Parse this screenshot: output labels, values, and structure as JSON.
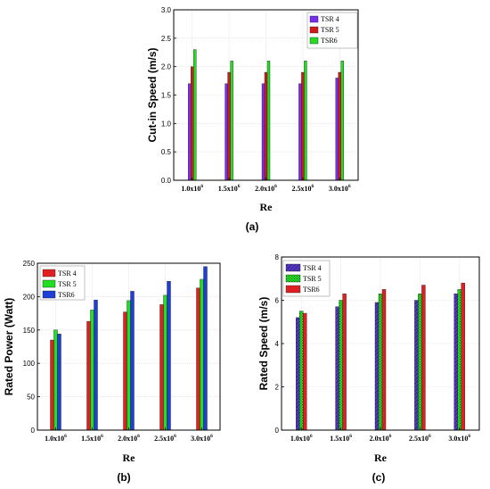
{
  "chart_data": [
    {
      "type": "bar",
      "panel_label": "(a)",
      "xlabel": "Re",
      "ylabel": "Cut-in Speed (m/s)",
      "categories": [
        "1.0x10^6",
        "1.5x10^6",
        "2.0x10^6",
        "2.5x10^6",
        "3.0x10^6"
      ],
      "ylim": [
        0,
        3.0
      ],
      "yticks": [
        "0.0",
        "0.5",
        "1.0",
        "1.5",
        "2.0",
        "2.5",
        "3.0"
      ],
      "legend_position": "top-right",
      "grid": true,
      "series": [
        {
          "name": "TSR 4",
          "color": "#7a2cf0",
          "pattern": false,
          "values": [
            1.7,
            1.7,
            1.7,
            1.7,
            1.8
          ]
        },
        {
          "name": "TSR 5",
          "color": "#d11a1a",
          "pattern": false,
          "values": [
            2.0,
            1.9,
            1.9,
            1.9,
            1.9
          ]
        },
        {
          "name": "TSR6",
          "color": "#22dd22",
          "pattern": false,
          "values": [
            2.3,
            2.1,
            2.1,
            2.1,
            2.1
          ]
        }
      ]
    },
    {
      "type": "bar",
      "panel_label": "(b)",
      "xlabel": "Re",
      "ylabel": "Rated Power (Watt)",
      "categories": [
        "1.0x10^6",
        "1.5x10^6",
        "2.0x10^6",
        "2.5x10^6",
        "3.0x10^6"
      ],
      "ylim": [
        0,
        250
      ],
      "yticks": [
        "0",
        "50",
        "100",
        "150",
        "200",
        "250"
      ],
      "legend_position": "top-left",
      "grid": true,
      "series": [
        {
          "name": "TSR 4",
          "color": "#e02020",
          "pattern": false,
          "values": [
            135,
            163,
            177,
            188,
            213
          ]
        },
        {
          "name": "TSR 5",
          "color": "#22dd22",
          "pattern": false,
          "values": [
            150,
            180,
            194,
            202,
            226
          ]
        },
        {
          "name": "TSR6",
          "color": "#1c3fd6",
          "pattern": false,
          "values": [
            144,
            195,
            208,
            223,
            245
          ]
        }
      ]
    },
    {
      "type": "bar",
      "panel_label": "(c)",
      "xlabel": "Re",
      "ylabel": "Rated Speed (m/s)",
      "categories": [
        "1.0x10^6",
        "1.5x10^6",
        "2.0x10^6",
        "2.5x10^6",
        "3.0x10^6"
      ],
      "ylim": [
        0,
        8
      ],
      "yticks": [
        "0",
        "2",
        "4",
        "6",
        "8"
      ],
      "legend_position": "top-left",
      "grid": true,
      "series": [
        {
          "name": "TSR 4",
          "color": "#5a34c8",
          "pattern": true,
          "values": [
            5.2,
            5.7,
            5.9,
            6.0,
            6.3
          ]
        },
        {
          "name": "TSR 5",
          "color": "#22dd22",
          "pattern": true,
          "values": [
            5.5,
            6.0,
            6.3,
            6.3,
            6.5
          ]
        },
        {
          "name": "TSR6",
          "color": "#e02020",
          "pattern": false,
          "values": [
            5.4,
            6.3,
            6.5,
            6.7,
            6.8
          ]
        }
      ]
    }
  ]
}
